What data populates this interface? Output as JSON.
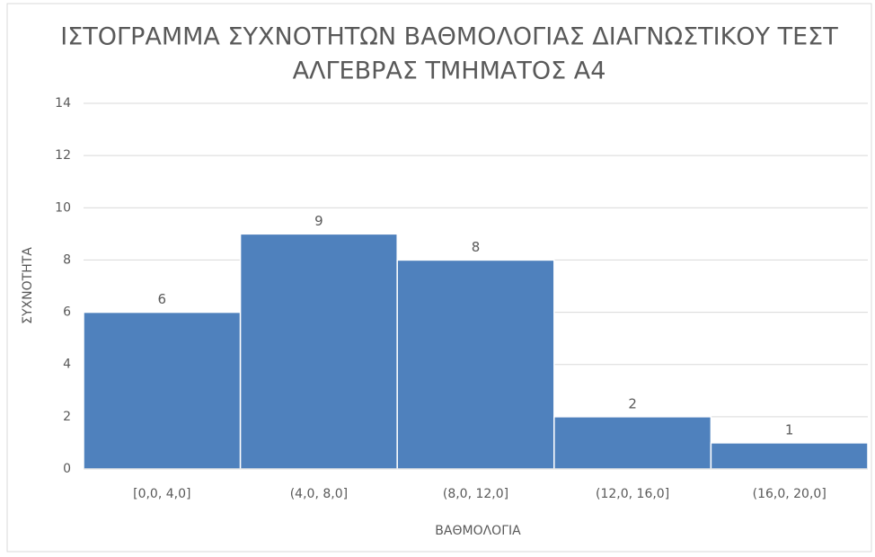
{
  "chart_data": {
    "type": "bar",
    "title": [
      "ΙΣΤΟΓΡΑΜΜΑ ΣΥΧΝΟΤΗΤΩΝ ΒΑΘΜΟΛΟΓΙΑΣ ΔΙΑΓΝΩΣΤΙΚΟΥ ΤΕΣΤ",
      "ΑΛΓΕΒΡΑΣ ΤΜΗΜΑΤΟΣ Α4"
    ],
    "x_label": "ΒΑΘΜΟΛΟΓΙΑ",
    "y_label": "ΣΥΧΝΟΤΗΤΑ",
    "categories": [
      "[0,0, 4,0]",
      "(4,0, 8,0]",
      "(8,0, 12,0]",
      "(12,0, 16,0]",
      "(16,0, 20,0]"
    ],
    "values": [
      6,
      9,
      8,
      2,
      1
    ],
    "color": "#4f81bd",
    "ylim": [
      0,
      14
    ],
    "yticks": [
      0,
      2,
      4,
      6,
      8,
      10,
      12,
      14
    ],
    "grid": true
  }
}
